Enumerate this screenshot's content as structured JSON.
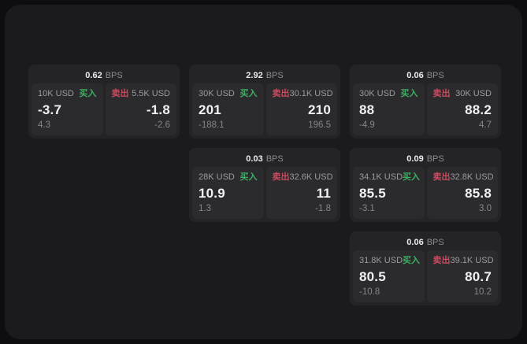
{
  "page": {
    "background_outer": "#0e0e10",
    "background_panel": "#1b1b1d",
    "card_background": "#242427",
    "pane_background": "#2b2b2e",
    "accent_buy_green": "#3fae63",
    "accent_sell_red": "#cc4a5e"
  },
  "labels": {
    "bps": "BPS",
    "buy": "买入",
    "sell": "卖出"
  },
  "cards": [
    {
      "row": 1,
      "col": 1,
      "bps": "0.62",
      "buy": {
        "amount": "10K USD",
        "main": "-3.7",
        "sub": "4.3"
      },
      "sell": {
        "amount": "5.5K USD",
        "main": "-1.8",
        "sub": "-2.6"
      }
    },
    {
      "row": 1,
      "col": 2,
      "bps": "2.92",
      "buy": {
        "amount": "30K USD",
        "main": "201",
        "sub": "-188.1"
      },
      "sell": {
        "amount": "30.1K USD",
        "main": "210",
        "sub": "196.5"
      }
    },
    {
      "row": 1,
      "col": 3,
      "bps": "0.06",
      "buy": {
        "amount": "30K USD",
        "main": "88",
        "sub": "-4.9"
      },
      "sell": {
        "amount": "30K USD",
        "main": "88.2",
        "sub": "4.7"
      }
    },
    {
      "row": 2,
      "col": 2,
      "bps": "0.03",
      "buy": {
        "amount": "28K USD",
        "main": "10.9",
        "sub": "1.3"
      },
      "sell": {
        "amount": "32.6K USD",
        "main": "11",
        "sub": "-1.8"
      }
    },
    {
      "row": 2,
      "col": 3,
      "bps": "0.09",
      "buy": {
        "amount": "34.1K USD",
        "main": "85.5",
        "sub": "-3.1"
      },
      "sell": {
        "amount": "32.8K USD",
        "main": "85.8",
        "sub": "3.0"
      }
    },
    {
      "row": 3,
      "col": 3,
      "bps": "0.06",
      "buy": {
        "amount": "31.8K USD",
        "main": "80.5",
        "sub": "-10.8"
      },
      "sell": {
        "amount": "39.1K USD",
        "main": "80.7",
        "sub": "10.2"
      }
    }
  ]
}
